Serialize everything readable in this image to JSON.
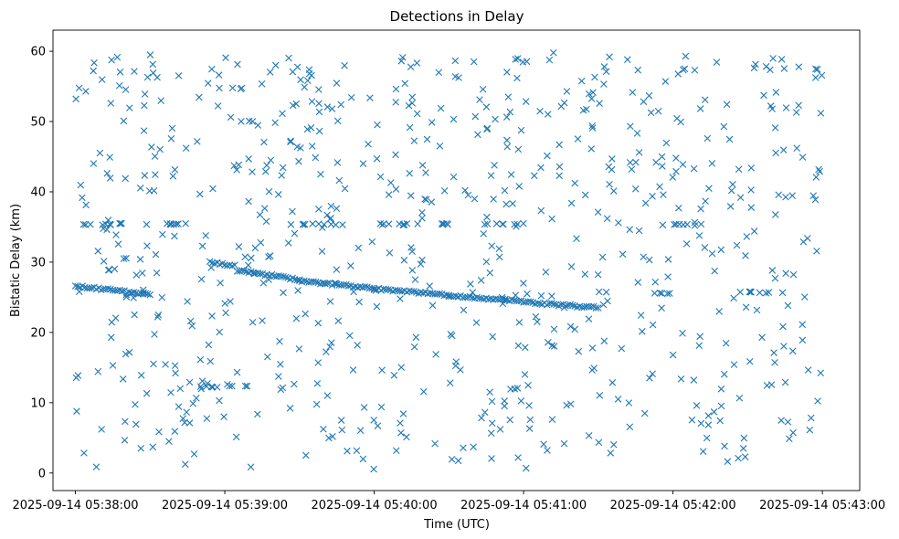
{
  "chart_data": {
    "type": "scatter",
    "title": "Detections in Delay",
    "xlabel": "Time (UTC)",
    "ylabel": "Bistatic Delay (km)",
    "marker": "x",
    "color": "#1f77b4",
    "grid": false,
    "x_unit": "time",
    "xlim": [
      "2025-09-14 05:37:51",
      "2025-09-14 05:43:15"
    ],
    "ylim": [
      -2.5,
      63
    ],
    "x_ticks": [
      "2025-09-14 05:38:00",
      "2025-09-14 05:39:00",
      "2025-09-14 05:40:00",
      "2025-09-14 05:41:00",
      "2025-09-14 05:42:00",
      "2025-09-14 05:43:00"
    ],
    "y_ticks": [
      0,
      10,
      20,
      30,
      40,
      50,
      60
    ],
    "approx_point_count": 950,
    "tracks": [
      {
        "start": "2025-09-14 05:38:00",
        "end": "2025-09-14 05:38:30",
        "delay_start": 26.6,
        "delay_end": 25.4
      },
      {
        "start": "2025-09-14 05:38:54",
        "end": "2025-09-14 05:39:04",
        "delay_start": 30.0,
        "delay_end": 29.5
      },
      {
        "start": "2025-09-14 05:39:05",
        "end": "2025-09-14 05:39:30",
        "delay_start": 28.8,
        "delay_end": 27.5
      },
      {
        "start": "2025-09-14 05:39:30",
        "end": "2025-09-14 05:40:00",
        "delay_start": 27.3,
        "delay_end": 26.3
      },
      {
        "start": "2025-09-14 05:40:00",
        "end": "2025-09-14 05:40:30",
        "delay_start": 26.2,
        "delay_end": 25.3
      },
      {
        "start": "2025-09-14 05:40:30",
        "end": "2025-09-14 05:41:00",
        "delay_start": 25.2,
        "delay_end": 24.4
      },
      {
        "start": "2025-09-14 05:41:00",
        "end": "2025-09-14 05:41:30",
        "delay_start": 24.3,
        "delay_end": 23.5
      }
    ],
    "horizontal_clusters": [
      {
        "delay": 35.4,
        "start": "2025-09-14 05:38:00",
        "end": "2025-09-14 05:38:45"
      },
      {
        "delay": 35.4,
        "start": "2025-09-14 05:39:30",
        "end": "2025-09-14 05:39:50"
      },
      {
        "delay": 35.4,
        "start": "2025-09-14 05:40:00",
        "end": "2025-09-14 05:40:30"
      },
      {
        "delay": 35.4,
        "start": "2025-09-14 05:40:42",
        "end": "2025-09-14 05:41:00"
      },
      {
        "delay": 35.3,
        "start": "2025-09-14 05:41:55",
        "end": "2025-09-14 05:42:12"
      },
      {
        "delay": 12.3,
        "start": "2025-09-14 05:38:50",
        "end": "2025-09-14 05:39:10"
      },
      {
        "delay": 25.6,
        "start": "2025-09-14 05:41:50",
        "end": "2025-09-14 05:42:00"
      },
      {
        "delay": 25.7,
        "start": "2025-09-14 05:42:30",
        "end": "2025-09-14 05:42:45"
      }
    ],
    "random_clutter": {
      "count": 720,
      "delay_range": [
        0.5,
        60
      ],
      "time_range": [
        "2025-09-14 05:38:00",
        "2025-09-14 05:43:00"
      ]
    }
  }
}
